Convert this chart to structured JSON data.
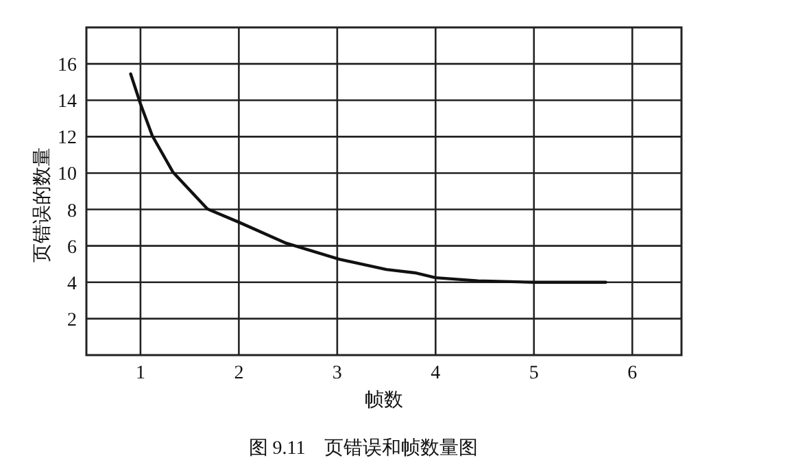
{
  "chart_data": {
    "type": "line",
    "xlabel": "帧数",
    "ylabel": "页错误的数量",
    "annotations": [
      "图 9.11    页错误和帧数量图"
    ],
    "x": [
      0.9,
      1.0,
      1.12,
      1.33,
      1.68,
      2.0,
      2.48,
      3.02,
      3.5,
      3.79,
      4.0,
      4.43,
      5.0,
      5.73
    ],
    "series": [
      {
        "color": "#111111",
        "values": [
          15.45,
          13.8,
          12.05,
          10.05,
          8.03,
          7.3,
          6.15,
          5.27,
          4.7,
          4.52,
          4.25,
          4.08,
          4.0,
          4.0
        ]
      }
    ],
    "xlim": [
      0.45,
      6.5
    ],
    "xticks": [
      1,
      2,
      3,
      4,
      5,
      6
    ],
    "ylim": [
      0,
      18
    ],
    "yticks": [
      2,
      4,
      6,
      8,
      10,
      12,
      14,
      16
    ],
    "grid": true
  }
}
